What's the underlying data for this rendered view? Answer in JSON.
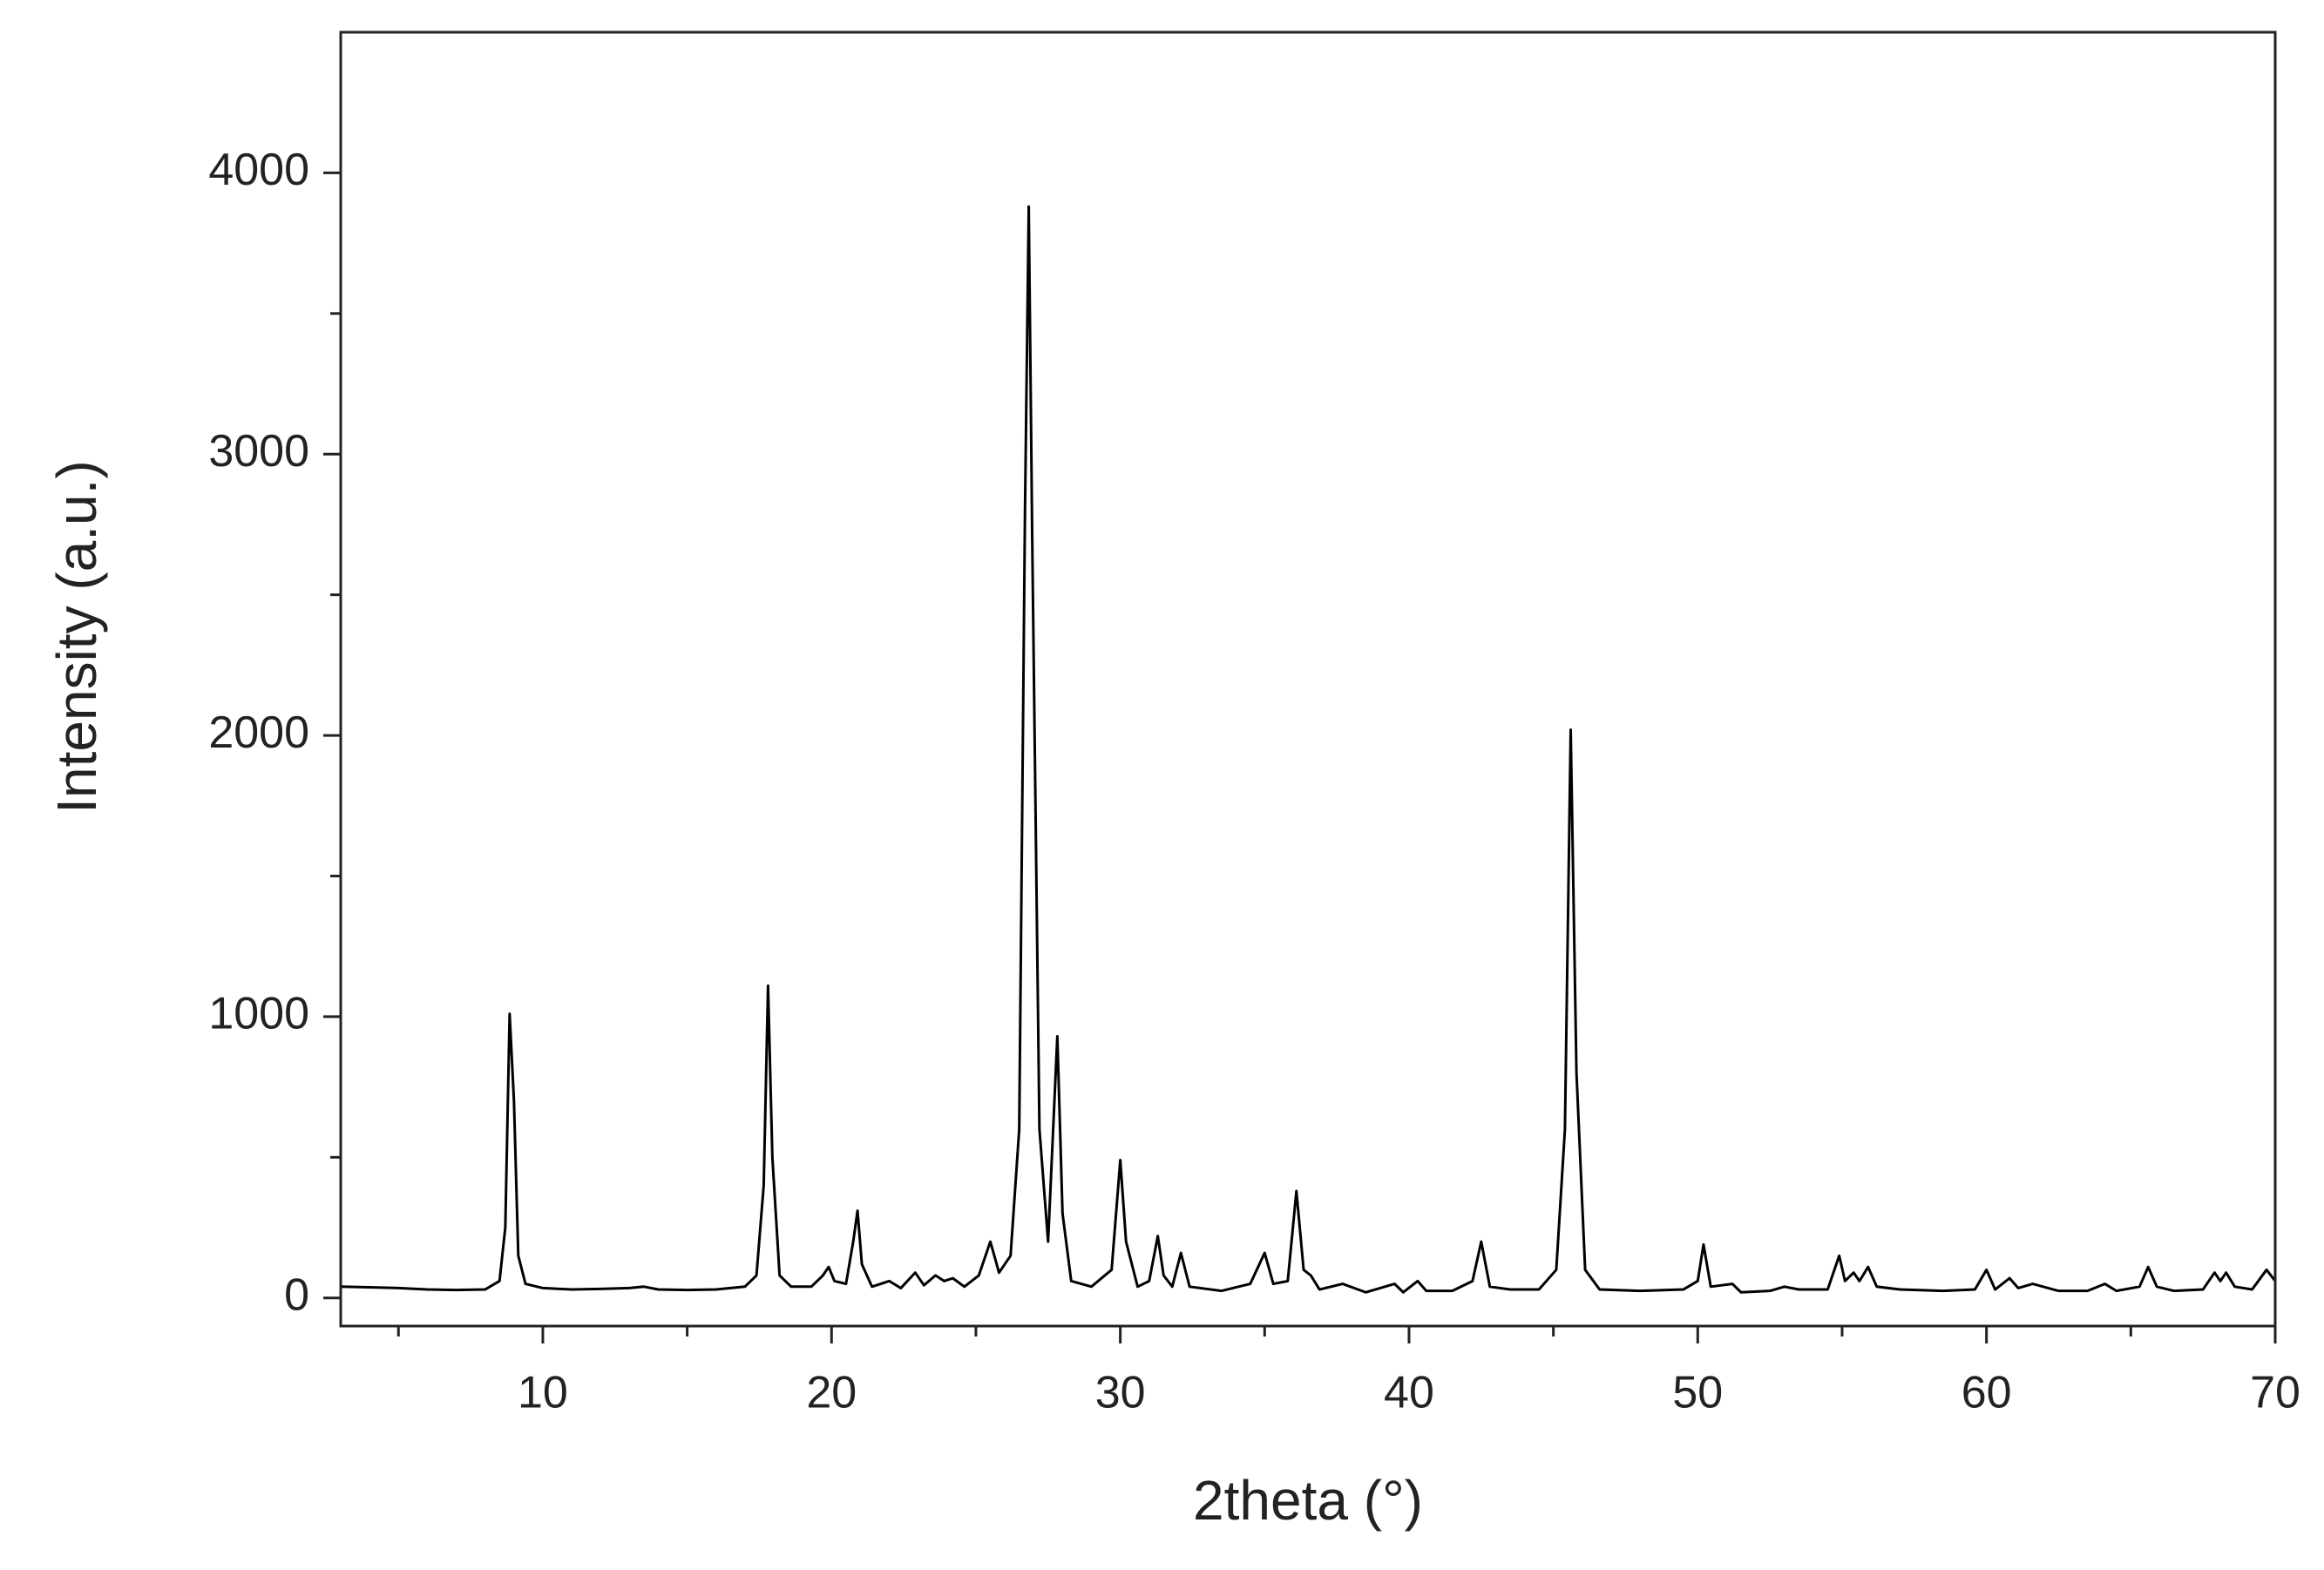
{
  "chart_data": {
    "type": "line",
    "x_label": "2theta (°)",
    "y_label": "Intensity (a.u.)",
    "color": "#000000",
    "xlim": [
      3,
      70
    ],
    "xticks": [
      10,
      20,
      30,
      40,
      50,
      60,
      70
    ],
    "x_minor_ticks": [
      5,
      15,
      25,
      35,
      45,
      55,
      65
    ],
    "ylim": [
      -100,
      4500
    ],
    "yticks": [
      0,
      1000,
      2000,
      3000,
      4000
    ],
    "y_minor_ticks": [
      500,
      1500,
      2500,
      3500
    ],
    "x": [
      3,
      4,
      5,
      6,
      7,
      8,
      8.5,
      8.7,
      8.85,
      9.0,
      9.15,
      9.4,
      10,
      11,
      12,
      13,
      13.5,
      14,
      15,
      16,
      17,
      17.4,
      17.65,
      17.8,
      17.95,
      18.2,
      18.6,
      19.3,
      19.7,
      19.9,
      20.1,
      20.5,
      20.75,
      20.9,
      21.05,
      21.4,
      22,
      22.4,
      22.9,
      23.2,
      23.6,
      23.9,
      24.2,
      24.6,
      25.1,
      25.5,
      25.8,
      26.2,
      26.5,
      26.7,
      26.83,
      26.95,
      27.2,
      27.5,
      27.82,
      28.0,
      28.3,
      29.0,
      29.7,
      30.0,
      30.2,
      30.6,
      31.0,
      31.3,
      31.5,
      31.8,
      32.1,
      32.4,
      33.5,
      34.5,
      35.0,
      35.3,
      35.8,
      36.1,
      36.35,
      36.6,
      36.9,
      37.7,
      38.5,
      39.5,
      39.8,
      40.3,
      40.6,
      41.5,
      42.2,
      42.5,
      42.8,
      43.5,
      44.5,
      45.1,
      45.4,
      45.6,
      45.8,
      46.1,
      46.6,
      48,
      49.5,
      50.0,
      50.2,
      50.45,
      51.2,
      51.5,
      52.5,
      53,
      53.5,
      54.5,
      54.9,
      55.1,
      55.4,
      55.6,
      55.9,
      56.2,
      57,
      58.5,
      59.6,
      60.0,
      60.3,
      60.8,
      61.1,
      61.6,
      62.5,
      63.5,
      64.1,
      64.5,
      65.3,
      65.6,
      65.9,
      66.5,
      67.5,
      67.9,
      68.1,
      68.3,
      68.6,
      69.2,
      69.7,
      70
    ],
    "values": [
      40,
      38,
      35,
      30,
      28,
      30,
      60,
      250,
      1010,
      700,
      150,
      50,
      35,
      30,
      32,
      35,
      40,
      30,
      28,
      30,
      40,
      80,
      400,
      1110,
      500,
      80,
      40,
      40,
      80,
      110,
      60,
      50,
      200,
      310,
      120,
      40,
      60,
      35,
      90,
      45,
      80,
      60,
      70,
      40,
      80,
      200,
      90,
      150,
      600,
      2800,
      3880,
      2700,
      600,
      200,
      930,
      300,
      60,
      40,
      100,
      490,
      200,
      40,
      60,
      220,
      80,
      40,
      160,
      40,
      25,
      50,
      160,
      50,
      60,
      380,
      100,
      80,
      30,
      50,
      20,
      50,
      20,
      60,
      25,
      25,
      60,
      200,
      40,
      30,
      30,
      100,
      600,
      2020,
      800,
      100,
      30,
      25,
      30,
      60,
      190,
      40,
      50,
      20,
      25,
      40,
      30,
      30,
      150,
      60,
      90,
      60,
      110,
      40,
      30,
      25,
      30,
      100,
      30,
      70,
      35,
      50,
      25,
      25,
      50,
      25,
      40,
      110,
      40,
      25,
      30,
      90,
      60,
      90,
      40,
      30,
      100,
      60
    ]
  }
}
